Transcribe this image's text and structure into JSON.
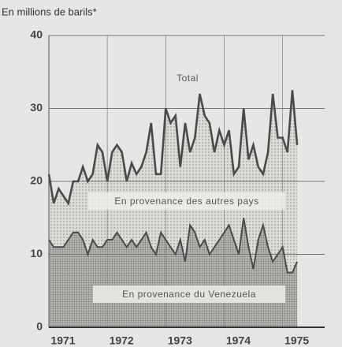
{
  "chart_data": {
    "type": "line",
    "ylabel": "En millions de barils*",
    "annotations": [
      "En provenance des autres pays"
    ],
    "x": [
      1971.0,
      1971.083,
      1971.167,
      1971.25,
      1971.333,
      1971.417,
      1971.5,
      1971.583,
      1971.667,
      1971.75,
      1971.833,
      1971.917,
      1972.0,
      1972.083,
      1972.167,
      1972.25,
      1972.333,
      1972.417,
      1972.5,
      1972.583,
      1972.667,
      1972.75,
      1972.833,
      1972.917,
      1973.0,
      1973.083,
      1973.167,
      1973.25,
      1973.333,
      1973.417,
      1973.5,
      1973.583,
      1973.667,
      1973.75,
      1973.833,
      1973.917,
      1974.0,
      1974.083,
      1974.167,
      1974.25,
      1974.333,
      1974.417,
      1974.5,
      1974.583,
      1974.667,
      1974.75,
      1974.833,
      1974.917,
      1975.0,
      1975.083,
      1975.167,
      1975.25
    ],
    "series": [
      {
        "name": "Total",
        "color": "#4a4a4a",
        "values": [
          21,
          17,
          19,
          18,
          17,
          20,
          20,
          22,
          20,
          21,
          25,
          24,
          20,
          24,
          25,
          24,
          20,
          22.5,
          21,
          22,
          24,
          28,
          21,
          21,
          30,
          28,
          29,
          22,
          28,
          24,
          26,
          32,
          29,
          28,
          24,
          27,
          25,
          27,
          21,
          22,
          30,
          23,
          25,
          22,
          21,
          24,
          32,
          26,
          26,
          24,
          32.5,
          25
        ]
      },
      {
        "name": "En provenance du Venezuela",
        "color": "#4a4a4a",
        "values": [
          12,
          11,
          11,
          11,
          12,
          13,
          13,
          12,
          10,
          12,
          11,
          11,
          12,
          12,
          13,
          12,
          11,
          12,
          11,
          12,
          13,
          11,
          10,
          13,
          12,
          11,
          10,
          12,
          9,
          14,
          13,
          11,
          12,
          10,
          11,
          12,
          13,
          14,
          12,
          10,
          15,
          11,
          8,
          12,
          14,
          11,
          9,
          10,
          11,
          7.5,
          7.5,
          9
        ]
      }
    ],
    "xlim": [
      1971,
      1975.72
    ],
    "xticks": [
      1971,
      1972,
      1973,
      1974,
      1975
    ],
    "ylim": [
      0,
      40
    ],
    "yticks": [
      0,
      10,
      20,
      30,
      40
    ],
    "grid": true
  }
}
